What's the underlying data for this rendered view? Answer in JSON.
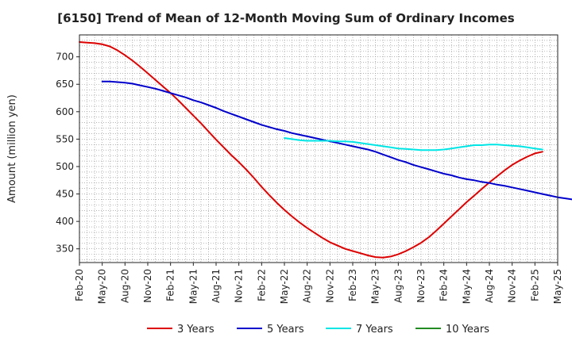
{
  "chart_data": {
    "type": "line",
    "title": "[6150]  Trend of Mean of 12-Month Moving Sum of Ordinary Incomes",
    "xlabel": "",
    "ylabel": "Amount (million yen)",
    "ylim": [
      325,
      740
    ],
    "yticks": [
      350,
      400,
      450,
      500,
      550,
      600,
      650,
      700
    ],
    "xticks": [
      "Feb-20",
      "May-20",
      "Aug-20",
      "Nov-20",
      "Feb-21",
      "May-21",
      "Aug-21",
      "Nov-21",
      "Feb-22",
      "May-22",
      "Aug-22",
      "Nov-22",
      "Feb-23",
      "May-23",
      "Aug-23",
      "Nov-23",
      "Feb-24",
      "May-24",
      "Aug-24",
      "Nov-24",
      "Feb-25",
      "May-25"
    ],
    "grid": true,
    "legend_position": "bottom",
    "series": [
      {
        "name": "3 Years",
        "color": "#dd0000",
        "start_index": 0,
        "values": [
          727,
          726,
          725,
          723,
          719,
          712,
          703,
          693,
          682,
          670,
          658,
          646,
          634,
          621,
          607,
          593,
          579,
          564,
          549,
          535,
          521,
          508,
          494,
          479,
          463,
          448,
          434,
          421,
          409,
          398,
          388,
          379,
          370,
          362,
          356,
          350,
          346,
          342,
          338,
          335,
          334,
          336,
          340,
          346,
          353,
          361,
          371,
          383,
          396,
          409,
          422,
          435,
          447,
          459,
          471,
          482,
          493,
          503,
          511,
          518,
          524,
          527
        ]
      },
      {
        "name": "5 Years",
        "color": "#0000cc",
        "start_index": 3,
        "values": [
          655,
          655,
          654,
          653,
          651,
          648,
          645,
          642,
          638,
          634,
          630,
          626,
          621,
          617,
          612,
          607,
          601,
          596,
          591,
          586,
          581,
          576,
          572,
          568,
          565,
          561,
          558,
          555,
          552,
          549,
          546,
          543,
          540,
          537,
          534,
          531,
          527,
          522,
          517,
          512,
          508,
          503,
          499,
          495,
          491,
          487,
          484,
          480,
          477,
          475,
          472,
          470,
          467,
          465,
          462,
          459,
          456,
          453,
          450,
          447,
          444,
          442,
          440,
          438,
          437
        ]
      },
      {
        "name": "7 Years",
        "color": "#00e5e5",
        "start_index": 27,
        "values": [
          552,
          550,
          548,
          547,
          547,
          547,
          547,
          546,
          546,
          545,
          543,
          541,
          539,
          537,
          535,
          533,
          532,
          531,
          530,
          530,
          530,
          531,
          533,
          535,
          537,
          539,
          539,
          540,
          540,
          539,
          538,
          537,
          535,
          533,
          531
        ]
      },
      {
        "name": "10 Years",
        "color": "#228b22",
        "start_index": 0,
        "values": []
      }
    ]
  },
  "legend": {
    "items": [
      {
        "label": "3 Years",
        "color": "#dd0000"
      },
      {
        "label": "5 Years",
        "color": "#0000cc"
      },
      {
        "label": "7 Years",
        "color": "#00e5e5"
      },
      {
        "label": "10 Years",
        "color": "#228b22"
      }
    ]
  }
}
